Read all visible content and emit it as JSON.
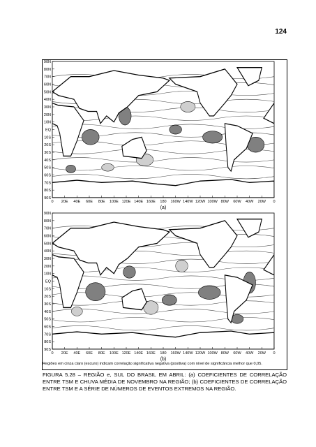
{
  "page_number": "124",
  "figure": {
    "panels": [
      {
        "label": "(a)"
      },
      {
        "label": "(b)"
      }
    ],
    "lat_labels": [
      "90N",
      "80N",
      "70N",
      "60N",
      "50N",
      "40N",
      "30N",
      "20N",
      "10N",
      "EQ",
      "10S",
      "20S",
      "30S",
      "40S",
      "50S",
      "60S",
      "70S",
      "80S",
      "90S"
    ],
    "lon_labels": [
      "0",
      "20E",
      "40E",
      "60E",
      "80E",
      "100E",
      "120E",
      "140E",
      "160E",
      "180",
      "160W",
      "140W",
      "120W",
      "100W",
      "80W",
      "60W",
      "40W",
      "20W",
      "0"
    ],
    "note": "Regiões em cinza claro (escuro) indicam correlação significativa negativa (positiva) com nível de significância melhor que 0,05.",
    "caption": "FIGURA 5.28 – REGIÃO e, SUL DO BRASIL EM ABRIL: (a) COEFICIENTES DE CORRELAÇÃO ENTRE TSM E CHUVA MÉDIA DE NOVEMBRO NA REGIÃO; (b) COEFICIENTES DE CORRELAÇÃO ENTRE TSM E A SÉRIE DE NÚMEROS DE EVENTOS EXTREMOS NA REGIÃO."
  }
}
